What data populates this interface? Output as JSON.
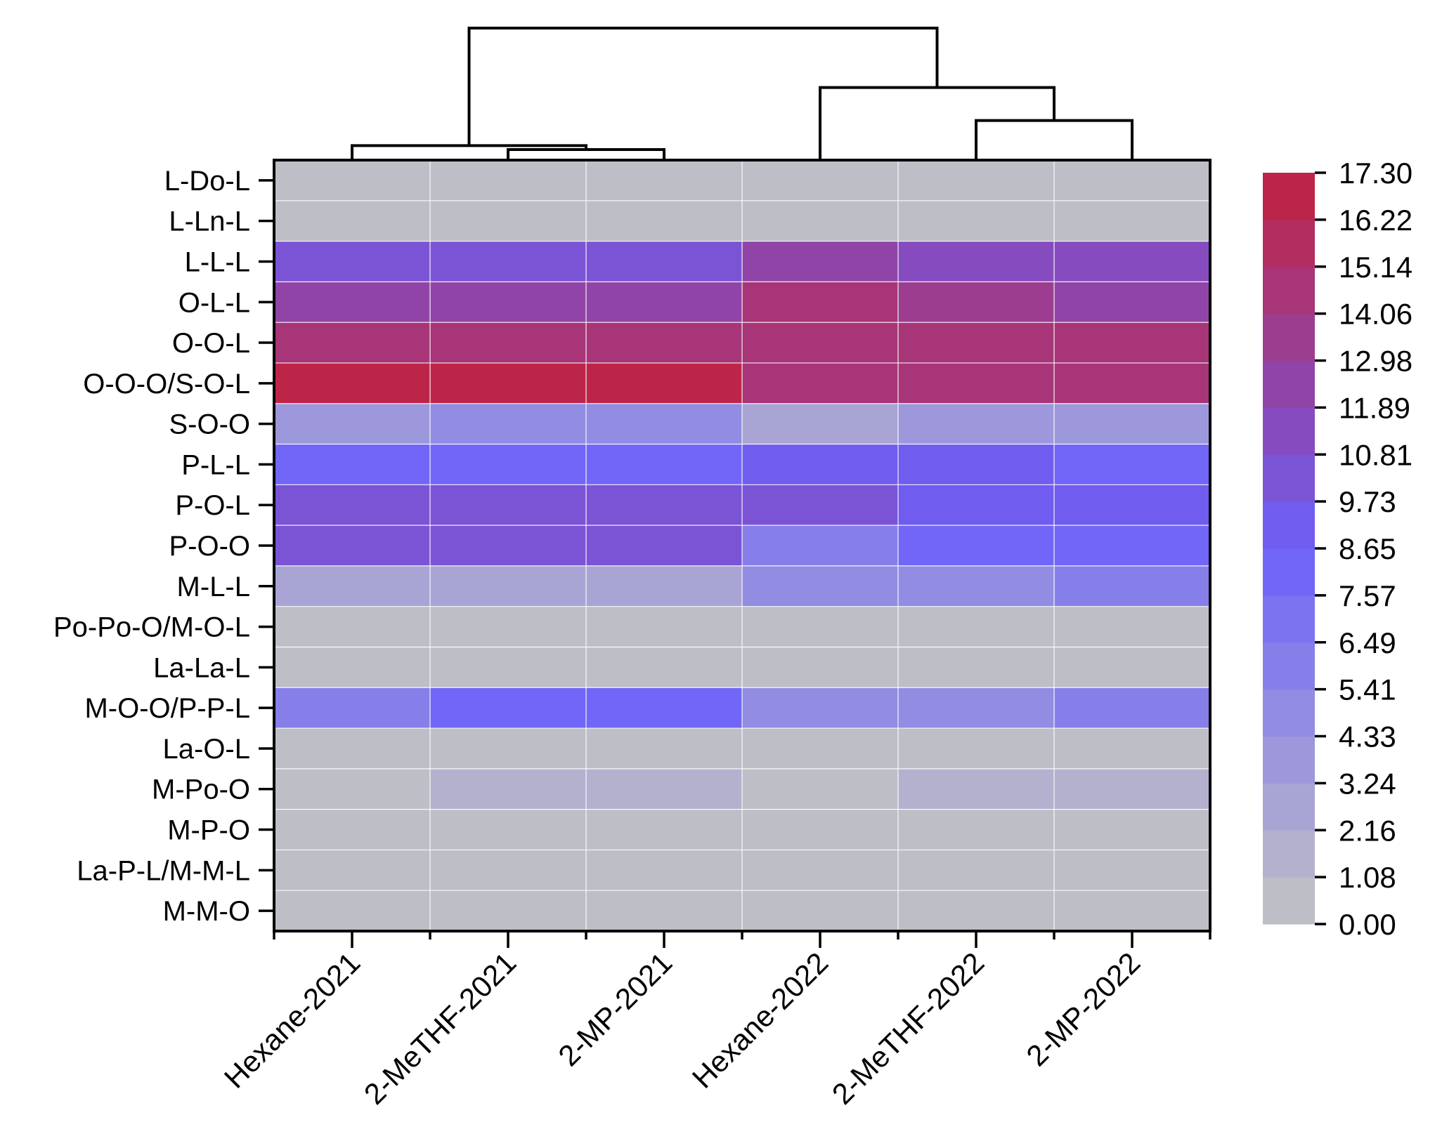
{
  "chart_data": {
    "type": "heatmap",
    "title": "",
    "rows": [
      "L-Do-L",
      "L-Ln-L",
      "L-L-L",
      "O-L-L",
      "O-O-L",
      "O-O-O/S-O-L",
      "S-O-O",
      "P-L-L",
      "P-O-L",
      "P-O-O",
      "M-L-L",
      "Po-Po-O/M-O-L",
      "La-La-L",
      "M-O-O/P-P-L",
      "La-O-L",
      "M-Po-O",
      "M-P-O",
      "La-P-L/M-M-L",
      "M-M-O"
    ],
    "columns": [
      "Hexane-2021",
      "2-MeTHF-2021",
      "2-MP-2021",
      "Hexane-2022",
      "2-MeTHF-2022",
      "2-MP-2022"
    ],
    "values": [
      [
        0,
        0,
        0,
        0,
        0,
        0
      ],
      [
        0,
        0,
        0,
        0,
        0,
        0
      ],
      [
        10.4,
        10.3,
        10.3,
        12.0,
        11.2,
        11.3
      ],
      [
        12.0,
        12.0,
        12.0,
        14.8,
        13.6,
        12.5
      ],
      [
        14.5,
        14.3,
        14.3,
        14.6,
        14.5,
        14.5
      ],
      [
        16.6,
        16.6,
        16.6,
        14.2,
        14.2,
        14.2
      ],
      [
        3.9,
        4.7,
        4.8,
        2.9,
        3.3,
        3.8
      ],
      [
        7.9,
        7.9,
        7.9,
        8.9,
        8.9,
        7.9
      ],
      [
        10.2,
        10.1,
        10.1,
        10.4,
        8.9,
        8.9
      ],
      [
        10.2,
        10.2,
        10.3,
        5.8,
        7.6,
        7.6
      ],
      [
        2.7,
        2.7,
        2.7,
        5.2,
        5.2,
        6.0
      ],
      [
        0,
        0,
        0,
        0,
        0,
        0
      ],
      [
        0,
        0,
        0,
        0,
        0,
        0
      ],
      [
        6.3,
        7.6,
        7.8,
        5.3,
        5.3,
        6.1
      ],
      [
        0,
        0,
        0,
        0,
        0,
        0
      ],
      [
        0,
        1.5,
        1.5,
        0,
        1.5,
        1.5
      ],
      [
        0,
        0,
        0,
        0,
        0,
        0
      ],
      [
        0,
        0,
        0,
        0,
        0,
        0
      ],
      [
        0,
        0,
        0,
        0,
        0,
        0
      ]
    ],
    "colorbar": {
      "ticks": [
        "17.30",
        "16.22",
        "15.14",
        "14.06",
        "12.98",
        "11.89",
        "10.81",
        "9.73",
        "8.65",
        "7.57",
        "6.49",
        "5.41",
        "4.33",
        "3.24",
        "2.16",
        "1.08",
        "0.00"
      ],
      "min": 0.0,
      "max": 17.3,
      "low_color": "#c4c4c4",
      "mid_color": "#6b60fa",
      "high_color": "#c2213c"
    },
    "dendrogram": {
      "leaf_order": [
        "Hexane-2021",
        "2-MeTHF-2021",
        "2-MP-2021",
        "Hexane-2022",
        "2-MeTHF-2022",
        "2-MP-2022"
      ],
      "merges": [
        {
          "left": 1,
          "right": 2,
          "height": 0.8
        },
        {
          "left": 4,
          "right": 5,
          "height": 3.0
        },
        {
          "left": 0,
          "right": "m0",
          "height": 1.1
        },
        {
          "left": 3,
          "right": "m1",
          "height": 5.5
        },
        {
          "left": "m2",
          "right": "m3",
          "height": 10.0
        }
      ]
    }
  }
}
